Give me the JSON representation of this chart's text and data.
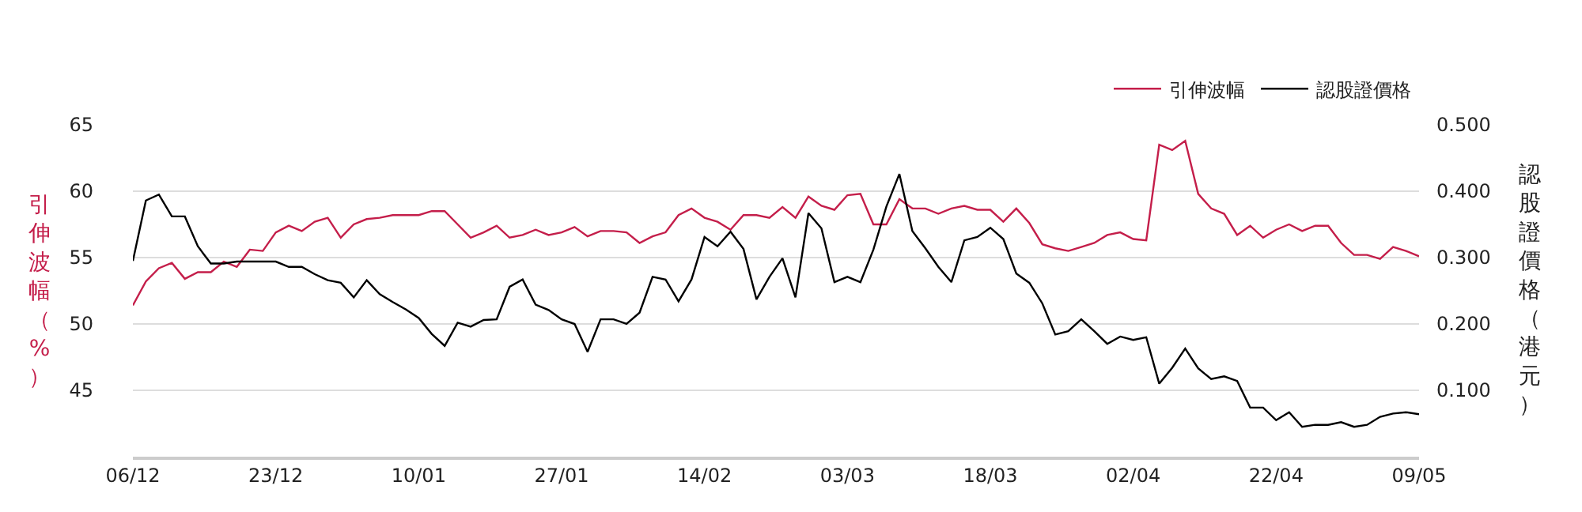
{
  "chart_data": {
    "type": "line",
    "categories": [
      "06/12",
      null,
      null,
      null,
      null,
      null,
      null,
      null,
      null,
      null,
      null,
      "23/12",
      null,
      null,
      null,
      null,
      null,
      null,
      null,
      null,
      null,
      null,
      "10/01",
      null,
      null,
      null,
      null,
      null,
      null,
      null,
      null,
      null,
      null,
      "27/01",
      null,
      null,
      null,
      null,
      null,
      null,
      null,
      null,
      null,
      null,
      "14/02",
      null,
      null,
      null,
      null,
      null,
      null,
      null,
      null,
      null,
      null,
      "03/03",
      null,
      null,
      null,
      null,
      null,
      null,
      null,
      null,
      null,
      null,
      "18/03",
      null,
      null,
      null,
      null,
      null,
      null,
      null,
      null,
      null,
      null,
      "02/04",
      null,
      null,
      null,
      null,
      null,
      null,
      null,
      null,
      null,
      null,
      "22/04",
      null,
      null,
      null,
      null,
      null,
      null,
      null,
      null,
      null,
      null,
      "09/05"
    ],
    "ylabel": "引伸波幅（%）",
    "y2label": "認股證價格（港元）",
    "ylim": [
      40,
      65
    ],
    "yticks": [
      45,
      50,
      55,
      60,
      65
    ],
    "y2lim": [
      0,
      0.5
    ],
    "y2ticks": [
      {
        "value": 0.1,
        "label": "0.100"
      },
      {
        "value": 0.2,
        "label": "0.200"
      },
      {
        "value": 0.3,
        "label": "0.300"
      },
      {
        "value": 0.4,
        "label": "0.400"
      },
      {
        "value": 0.5,
        "label": "0.500"
      }
    ],
    "grid": "y",
    "legend": "top right",
    "marker": "none",
    "line_style": "solid",
    "series": [
      {
        "name": "引伸波幅",
        "color": "#c41e4a",
        "values": [
          51.4,
          53.2,
          54.2,
          54.6,
          53.4,
          53.9,
          53.9,
          54.7,
          54.3,
          55.6,
          55.5,
          56.9,
          57.4,
          57.0,
          57.7,
          58.0,
          56.5,
          57.5,
          57.9,
          58.0,
          58.2,
          58.2,
          58.2,
          58.5,
          58.5,
          57.5,
          56.5,
          56.9,
          57.4,
          56.5,
          56.7,
          57.1,
          56.7,
          56.9,
          57.3,
          56.6,
          57.0,
          57.0,
          56.9,
          56.1,
          56.6,
          56.9,
          58.2,
          58.7,
          58.0,
          57.7,
          57.1,
          58.2,
          58.2,
          58.0,
          58.8,
          58.0,
          59.6,
          58.9,
          58.6,
          59.7,
          59.8,
          57.5,
          57.5,
          59.4,
          58.7,
          58.7,
          58.3,
          58.7,
          58.9,
          58.6,
          58.6,
          57.7,
          58.7,
          57.6,
          56.0,
          55.7,
          55.5,
          55.8,
          56.1,
          56.7,
          56.9,
          56.4,
          56.3,
          63.5,
          63.1,
          63.8,
          59.8,
          58.7,
          58.3,
          56.7,
          57.4,
          56.5,
          57.1,
          57.5,
          57.0,
          57.4,
          57.4,
          56.1,
          55.2,
          55.2,
          54.9,
          55.8,
          55.5,
          55.1
        ]
      },
      {
        "name": "認股證價格",
        "color": "#000000",
        "axis": "y2",
        "values": [
          0.295,
          0.386,
          0.395,
          0.362,
          0.362,
          0.317,
          0.291,
          0.291,
          0.294,
          0.294,
          0.294,
          0.294,
          0.286,
          0.286,
          0.275,
          0.266,
          0.262,
          0.24,
          0.266,
          0.245,
          0.233,
          0.222,
          0.209,
          0.185,
          0.167,
          0.202,
          0.196,
          0.206,
          0.207,
          0.256,
          0.267,
          0.229,
          0.221,
          0.207,
          0.2,
          0.158,
          0.207,
          0.207,
          0.2,
          0.217,
          0.271,
          0.267,
          0.234,
          0.267,
          0.331,
          0.317,
          0.339,
          0.313,
          0.237,
          0.271,
          0.299,
          0.24,
          0.367,
          0.344,
          0.263,
          0.271,
          0.263,
          0.312,
          0.377,
          0.426,
          0.34,
          0.314,
          0.286,
          0.263,
          0.326,
          0.331,
          0.345,
          0.328,
          0.276,
          0.262,
          0.231,
          0.184,
          0.189,
          0.207,
          0.189,
          0.17,
          0.181,
          0.176,
          0.18,
          0.11,
          0.134,
          0.163,
          0.133,
          0.117,
          0.121,
          0.114,
          0.074,
          0.074,
          0.055,
          0.067,
          0.045,
          0.048,
          0.048,
          0.052,
          0.045,
          0.048,
          0.06,
          0.065,
          0.067,
          0.064
        ]
      }
    ]
  }
}
